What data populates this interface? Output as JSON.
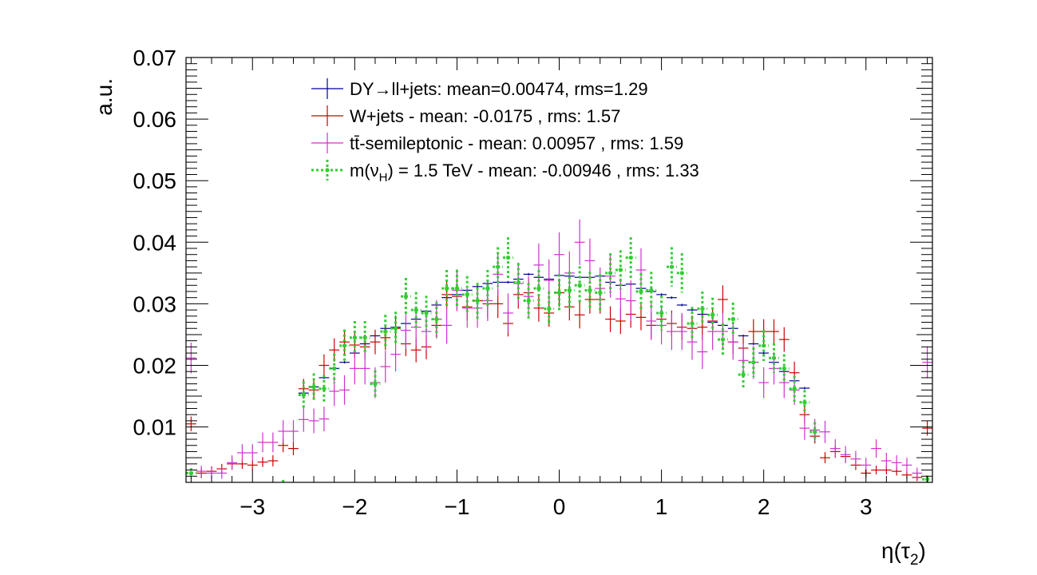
{
  "chart_data": {
    "type": "scatter",
    "title": "",
    "xlabel": "η(τ",
    "xlabel_sub": "2",
    "xlabel_close": ")",
    "ylabel": "a.u.",
    "xlim": [
      -3.65,
      3.65
    ],
    "ylim": [
      0.001,
      0.07
    ],
    "bin_width": 0.1,
    "grid": false,
    "legend_position": "top",
    "x_ticks": [
      -3,
      -2,
      -1,
      0,
      1,
      2,
      3
    ],
    "x_tick_labels": [
      "−3",
      "−2",
      "−1",
      "0",
      "1",
      "2",
      "3"
    ],
    "y_ticks": [
      0.01,
      0.02,
      0.03,
      0.04,
      0.05,
      0.06,
      0.07
    ],
    "y_tick_labels": [
      "0.01",
      "0.02",
      "0.03",
      "0.04",
      "0.05",
      "0.06",
      "0.07"
    ],
    "series": [
      {
        "name": "DY→ll+jets: mean=0.00474, rms=1.29",
        "color": "#000099",
        "style": "solid",
        "marker": "none",
        "x": [
          -2.5,
          -2.4,
          -2.3,
          -2.2,
          -2.1,
          -2.0,
          -1.9,
          -1.8,
          -1.7,
          -1.6,
          -1.5,
          -1.4,
          -1.3,
          -1.2,
          -1.1,
          -1.0,
          -0.9,
          -0.8,
          -0.7,
          -0.6,
          -0.5,
          -0.4,
          -0.3,
          -0.2,
          -0.1,
          0.0,
          0.1,
          0.2,
          0.3,
          0.4,
          0.5,
          0.6,
          0.7,
          0.8,
          0.9,
          1.0,
          1.1,
          1.2,
          1.3,
          1.4,
          1.5,
          1.6,
          1.7,
          1.8,
          1.9,
          2.0,
          2.1,
          2.2,
          2.3,
          2.4
        ],
        "y": [
          0.0155,
          0.0165,
          0.018,
          0.0195,
          0.0205,
          0.022,
          0.0235,
          0.0248,
          0.026,
          0.0262,
          0.0268,
          0.0275,
          0.0288,
          0.0298,
          0.031,
          0.0315,
          0.0322,
          0.0328,
          0.0333,
          0.0335,
          0.0335,
          0.034,
          0.0348,
          0.0343,
          0.034,
          0.0346,
          0.0345,
          0.0343,
          0.0343,
          0.0345,
          0.0335,
          0.033,
          0.0332,
          0.0325,
          0.032,
          0.0315,
          0.031,
          0.0298,
          0.029,
          0.0283,
          0.027,
          0.0265,
          0.026,
          0.0248,
          0.0235,
          0.022,
          0.0205,
          0.019,
          0.0175,
          0.0163
        ],
        "yerr": [
          0.0002,
          0.0002,
          0.0002,
          0.0002,
          0.0002,
          0.0002,
          0.0002,
          0.0002,
          0.0002,
          0.0002,
          0.0002,
          0.0002,
          0.0002,
          0.0002,
          0.0002,
          0.0002,
          0.0002,
          0.0002,
          0.0002,
          0.0002,
          0.0002,
          0.0002,
          0.0002,
          0.0002,
          0.0002,
          0.0002,
          0.0002,
          0.0002,
          0.0002,
          0.0002,
          0.0002,
          0.0002,
          0.0002,
          0.0002,
          0.0002,
          0.0002,
          0.0002,
          0.0002,
          0.0002,
          0.0002,
          0.0002,
          0.0002,
          0.0002,
          0.0002,
          0.0002,
          0.0002,
          0.0002,
          0.0002,
          0.0002,
          0.0002
        ]
      },
      {
        "name": "W+jets - mean: -0.0175 , rms: 1.57",
        "color": "#cc0000",
        "style": "solid",
        "marker": "none",
        "x": [
          -3.6,
          -3.5,
          -3.4,
          -3.3,
          -3.2,
          -3.1,
          -3.0,
          -2.9,
          -2.8,
          -2.7,
          -2.6,
          -2.5,
          -2.4,
          -2.3,
          -2.2,
          -2.1,
          -2.0,
          -1.9,
          -1.8,
          -1.7,
          -1.6,
          -1.5,
          -1.4,
          -1.3,
          -1.2,
          -1.1,
          -1.0,
          -0.9,
          -0.8,
          -0.7,
          -0.6,
          -0.5,
          -0.4,
          -0.3,
          -0.2,
          -0.1,
          0.0,
          0.1,
          0.2,
          0.3,
          0.4,
          0.5,
          0.6,
          0.7,
          0.8,
          0.9,
          1.0,
          1.1,
          1.2,
          1.3,
          1.4,
          1.5,
          1.6,
          1.7,
          1.8,
          1.9,
          2.0,
          2.1,
          2.2,
          2.3,
          2.4,
          2.5,
          2.6,
          2.7,
          2.8,
          2.9,
          3.0,
          3.1,
          3.2,
          3.3,
          3.4,
          3.5,
          3.6
        ],
        "y": [
          0.0105,
          0.0025,
          0.0028,
          0.0032,
          0.004,
          0.004,
          0.0038,
          0.0043,
          0.0045,
          0.007,
          0.0065,
          0.0162,
          0.016,
          0.02,
          0.0225,
          0.0238,
          0.0233,
          0.023,
          0.0238,
          0.0245,
          0.026,
          0.0235,
          0.0225,
          0.023,
          0.0265,
          0.0315,
          0.0312,
          0.0295,
          0.0305,
          0.03,
          0.03,
          0.0268,
          0.0315,
          0.0318,
          0.0293,
          0.0285,
          0.0318,
          0.0295,
          0.0282,
          0.0307,
          0.0307,
          0.0275,
          0.0272,
          0.0283,
          0.0278,
          0.0265,
          0.0275,
          0.0268,
          0.0262,
          0.026,
          0.0262,
          0.0272,
          0.0307,
          0.0238,
          0.0228,
          0.0255,
          0.0255,
          0.0255,
          0.0242,
          0.0188,
          0.012,
          0.0085,
          0.005,
          0.006,
          0.0052,
          0.0038,
          0.0025,
          0.003,
          0.003,
          0.0028,
          0.0022,
          0.0018,
          0.0098
        ],
        "yerr": [
          0.0012,
          0.0008,
          0.0008,
          0.0008,
          0.0008,
          0.0008,
          0.0008,
          0.0008,
          0.0009,
          0.0011,
          0.0011,
          0.0016,
          0.0016,
          0.0018,
          0.0019,
          0.002,
          0.002,
          0.002,
          0.002,
          0.002,
          0.0021,
          0.002,
          0.002,
          0.002,
          0.0021,
          0.0023,
          0.0023,
          0.0022,
          0.0023,
          0.0023,
          0.0023,
          0.0021,
          0.0023,
          0.0023,
          0.0022,
          0.0022,
          0.0023,
          0.0022,
          0.0022,
          0.0023,
          0.0023,
          0.0021,
          0.0021,
          0.0022,
          0.0021,
          0.0021,
          0.0021,
          0.0021,
          0.0021,
          0.0021,
          0.0021,
          0.0021,
          0.0023,
          0.002,
          0.002,
          0.002,
          0.002,
          0.002,
          0.002,
          0.0018,
          0.0014,
          0.0012,
          0.0009,
          0.001,
          0.0009,
          0.0008,
          0.0007,
          0.0007,
          0.0007,
          0.0007,
          0.0006,
          0.0006,
          0.0012
        ]
      },
      {
        "name": "tt̄-semileptonic - mean: 0.00957 , rms: 1.59",
        "color": "#cc33cc",
        "style": "solid",
        "marker": "none",
        "x": [
          -3.6,
          -3.5,
          -3.4,
          -3.3,
          -3.2,
          -3.1,
          -3.0,
          -2.9,
          -2.8,
          -2.7,
          -2.6,
          -2.5,
          -2.4,
          -2.3,
          -2.2,
          -2.1,
          -2.0,
          -1.9,
          -1.8,
          -1.7,
          -1.6,
          -1.5,
          -1.4,
          -1.3,
          -1.2,
          -1.1,
          -1.0,
          -0.9,
          -0.8,
          -0.7,
          -0.6,
          -0.5,
          -0.4,
          -0.3,
          -0.2,
          -0.1,
          0.0,
          0.1,
          0.2,
          0.3,
          0.4,
          0.5,
          0.6,
          0.7,
          0.8,
          0.9,
          1.0,
          1.1,
          1.2,
          1.3,
          1.4,
          1.5,
          1.6,
          1.7,
          1.8,
          1.9,
          2.0,
          2.1,
          2.2,
          2.3,
          2.4,
          2.5,
          2.6,
          2.7,
          2.8,
          2.9,
          3.0,
          3.1,
          3.2,
          3.3,
          3.4,
          3.5,
          3.6
        ],
        "y": [
          0.0212,
          0.0028,
          0.0025,
          0.0025,
          0.0042,
          0.0058,
          0.0058,
          0.0075,
          0.0075,
          0.0093,
          0.0093,
          0.0112,
          0.011,
          0.0113,
          0.0158,
          0.016,
          0.0195,
          0.0195,
          0.0172,
          0.0198,
          0.0218,
          0.0257,
          0.0262,
          0.0255,
          0.0275,
          0.0265,
          0.0322,
          0.0293,
          0.0293,
          0.0305,
          0.0348,
          0.0285,
          0.0333,
          0.0312,
          0.0363,
          0.0338,
          0.038,
          0.035,
          0.04,
          0.037,
          0.0325,
          0.0345,
          0.0308,
          0.0305,
          0.0355,
          0.0272,
          0.0265,
          0.0255,
          0.0255,
          0.0238,
          0.0222,
          0.0255,
          0.0255,
          0.0238,
          0.0208,
          0.0205,
          0.0172,
          0.0195,
          0.0172,
          0.016,
          0.0098,
          0.0095,
          0.0092,
          0.0065,
          0.0055,
          0.0048,
          0.0038,
          0.0065,
          0.0045,
          0.0042,
          0.0038,
          0.0025,
          0.0205
        ],
        "yerr": [
          0.0025,
          0.0009,
          0.0009,
          0.0009,
          0.0012,
          0.0014,
          0.0014,
          0.0016,
          0.0016,
          0.0018,
          0.0018,
          0.002,
          0.002,
          0.002,
          0.0024,
          0.0024,
          0.0026,
          0.0026,
          0.0025,
          0.0026,
          0.0028,
          0.003,
          0.003,
          0.003,
          0.0031,
          0.003,
          0.0034,
          0.0032,
          0.0032,
          0.0033,
          0.0035,
          0.0032,
          0.0034,
          0.0033,
          0.0035,
          0.0034,
          0.0036,
          0.0035,
          0.0037,
          0.0036,
          0.0034,
          0.0035,
          0.0033,
          0.0033,
          0.0035,
          0.0031,
          0.0031,
          0.003,
          0.003,
          0.0029,
          0.0028,
          0.003,
          0.003,
          0.0029,
          0.0027,
          0.0027,
          0.0025,
          0.0026,
          0.0025,
          0.0024,
          0.0019,
          0.0018,
          0.0018,
          0.0015,
          0.0014,
          0.0013,
          0.0012,
          0.0015,
          0.0013,
          0.0012,
          0.0012,
          0.0009,
          0.0026
        ]
      },
      {
        "name": "m(ν_H) = 1.5 TeV - mean: -0.00946 , rms: 1.33",
        "name_parts": [
          "m(ν",
          "H",
          ") = 1.5 TeV - mean: -0.00946 , rms: 1.33"
        ],
        "color": "#33cc33",
        "style": "dotted",
        "marker": "dot",
        "x": [
          -3.6,
          -2.7,
          -2.5,
          -2.4,
          -2.3,
          -2.2,
          -2.1,
          -2.0,
          -1.9,
          -1.8,
          -1.7,
          -1.6,
          -1.5,
          -1.4,
          -1.3,
          -1.2,
          -1.1,
          -1.0,
          -0.9,
          -0.8,
          -0.7,
          -0.6,
          -0.5,
          -0.4,
          -0.3,
          -0.2,
          -0.1,
          0.0,
          0.1,
          0.2,
          0.3,
          0.4,
          0.5,
          0.6,
          0.7,
          0.8,
          0.9,
          1.0,
          1.1,
          1.2,
          1.3,
          1.4,
          1.5,
          1.6,
          1.7,
          1.8,
          1.9,
          2.0,
          2.1,
          2.2,
          2.3,
          2.4,
          2.5,
          3.6
        ],
        "y": [
          0.0025,
          0.0008,
          0.0152,
          0.0165,
          0.0162,
          0.0195,
          0.0232,
          0.0245,
          0.0245,
          0.017,
          0.0255,
          0.026,
          0.0312,
          0.029,
          0.0285,
          0.0275,
          0.0325,
          0.0325,
          0.0315,
          0.0305,
          0.0325,
          0.036,
          0.0375,
          0.0335,
          0.0305,
          0.0325,
          0.0292,
          0.0318,
          0.0322,
          0.033,
          0.0322,
          0.0318,
          0.035,
          0.0355,
          0.0375,
          0.032,
          0.0322,
          0.0285,
          0.036,
          0.035,
          0.0268,
          0.0292,
          0.0282,
          0.0242,
          0.0275,
          0.0185,
          0.0205,
          0.0232,
          0.0212,
          0.0195,
          0.0162,
          0.014,
          0.0092,
          0.0015
        ],
        "yerr": [
          0.0008,
          0.0006,
          0.0022,
          0.0022,
          0.0022,
          0.0024,
          0.0026,
          0.0027,
          0.0027,
          0.0022,
          0.0027,
          0.0027,
          0.003,
          0.0029,
          0.0028,
          0.0028,
          0.003,
          0.003,
          0.003,
          0.0029,
          0.003,
          0.0032,
          0.0033,
          0.0031,
          0.0029,
          0.003,
          0.0028,
          0.003,
          0.003,
          0.0031,
          0.003,
          0.003,
          0.0032,
          0.0032,
          0.0033,
          0.003,
          0.003,
          0.0028,
          0.0032,
          0.0032,
          0.0027,
          0.0028,
          0.0028,
          0.0026,
          0.0027,
          0.0022,
          0.0024,
          0.0025,
          0.0024,
          0.0023,
          0.0021,
          0.002,
          0.0016,
          0.0006
        ]
      }
    ]
  }
}
